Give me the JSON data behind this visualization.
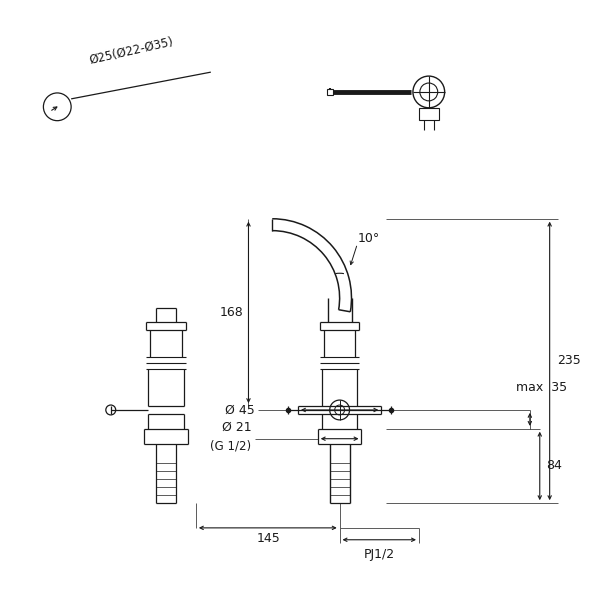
{
  "bg_color": "#ffffff",
  "line_color": "#1a1a1a",
  "fig_width": 6.0,
  "fig_height": 6.0,
  "dpi": 100,
  "pipe_label": "Ø25(Ø22-Ø35)",
  "dim_235": "235",
  "dim_35": "max  35",
  "dim_84": "84",
  "dim_168": "168",
  "dim_145": "145",
  "dim_10": "10°",
  "dim_45": "Ø 45",
  "dim_21": "Ø 21",
  "dim_G12": "(G 1/2)",
  "dim_PJ12": "PJ1/2"
}
